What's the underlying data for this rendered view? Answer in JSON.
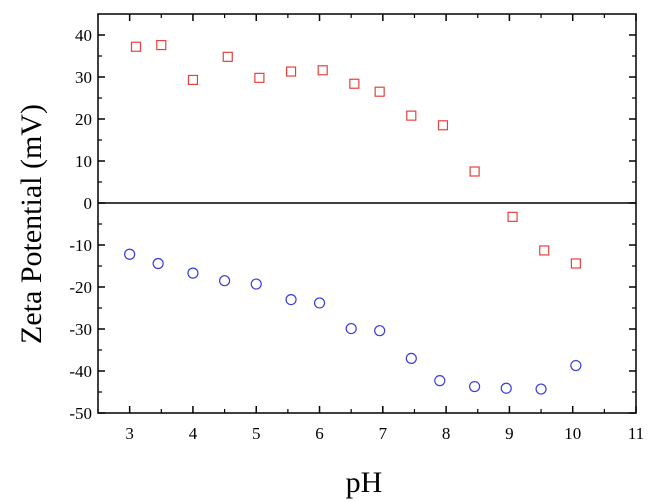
{
  "chart_data": {
    "type": "scatter",
    "xlabel": "pH",
    "ylabel": "Zeta Potential (mV)",
    "xlim": [
      2.5,
      11
    ],
    "ylim": [
      -50,
      45
    ],
    "xticks": [
      3,
      4,
      5,
      6,
      7,
      8,
      9,
      10,
      11
    ],
    "yticks": [
      -50,
      -40,
      -30,
      -20,
      -10,
      0,
      10,
      20,
      30,
      40
    ],
    "zero_line": true,
    "grid": false,
    "series": [
      {
        "marker": "square",
        "color": "#e8413b",
        "points": [
          [
            3.1,
            37.2
          ],
          [
            3.5,
            37.6
          ],
          [
            4.0,
            29.3
          ],
          [
            4.55,
            34.8
          ],
          [
            5.05,
            29.8
          ],
          [
            5.55,
            31.3
          ],
          [
            6.05,
            31.6
          ],
          [
            6.55,
            28.4
          ],
          [
            6.95,
            26.5
          ],
          [
            7.45,
            20.8
          ],
          [
            7.95,
            18.5
          ],
          [
            8.45,
            7.5
          ],
          [
            9.05,
            -3.3
          ],
          [
            9.55,
            -11.3
          ],
          [
            10.05,
            -14.4
          ]
        ]
      },
      {
        "marker": "circle",
        "color": "#3a3adf",
        "points": [
          [
            3.0,
            -12.2
          ],
          [
            3.45,
            -14.4
          ],
          [
            4.0,
            -16.7
          ],
          [
            4.5,
            -18.5
          ],
          [
            5.0,
            -19.3
          ],
          [
            5.55,
            -23.0
          ],
          [
            6.0,
            -23.8
          ],
          [
            6.5,
            -29.9
          ],
          [
            6.95,
            -30.4
          ],
          [
            7.45,
            -37.0
          ],
          [
            7.9,
            -42.3
          ],
          [
            8.45,
            -43.7
          ],
          [
            8.95,
            -44.1
          ],
          [
            9.5,
            -44.3
          ],
          [
            10.05,
            -38.7
          ]
        ]
      }
    ]
  }
}
